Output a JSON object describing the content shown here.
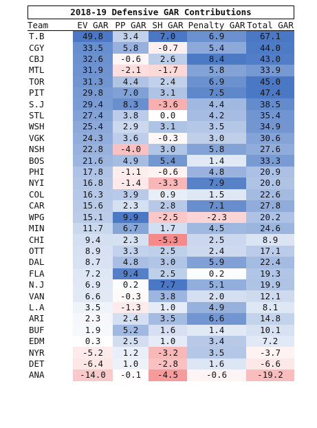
{
  "chart_data": {
    "type": "table",
    "title": "2018-19 Defensive GAR Contributions",
    "columns": [
      "Team",
      "EV GAR",
      "PP GAR",
      "SH GAR",
      "Penalty GAR",
      "Total GAR"
    ],
    "colors": {
      "positive": "#4a78c4",
      "negative": "#f06464",
      "neutral": "#ffffff"
    },
    "color_scale_abs_max": [
      40,
      10,
      7,
      8.5,
      45
    ],
    "rows": [
      [
        "T.B",
        "49.8",
        "3.4",
        "7.0",
        "6.9",
        "67.1"
      ],
      [
        "CGY",
        "33.5",
        "5.8",
        "-0.7",
        "5.4",
        "44.0"
      ],
      [
        "CBJ",
        "32.6",
        "-0.6",
        "2.6",
        "8.4",
        "43.0"
      ],
      [
        "MTL",
        "31.9",
        "-2.1",
        "-1.7",
        "5.8",
        "33.9"
      ],
      [
        "TOR",
        "31.3",
        "4.4",
        "2.4",
        "6.9",
        "45.0"
      ],
      [
        "PIT",
        "29.8",
        "7.0",
        "3.1",
        "7.5",
        "47.4"
      ],
      [
        "S.J",
        "29.4",
        "8.3",
        "-3.6",
        "4.4",
        "38.5"
      ],
      [
        "STL",
        "27.4",
        "3.8",
        "0.0",
        "4.2",
        "35.4"
      ],
      [
        "WSH",
        "25.4",
        "2.9",
        "3.1",
        "3.5",
        "34.9"
      ],
      [
        "VGK",
        "24.3",
        "3.6",
        "-0.3",
        "3.0",
        "30.6"
      ],
      [
        "NSH",
        "22.8",
        "-4.0",
        "3.0",
        "5.8",
        "27.6"
      ],
      [
        "BOS",
        "21.6",
        "4.9",
        "5.4",
        "1.4",
        "33.3"
      ],
      [
        "PHI",
        "17.8",
        "-1.1",
        "-0.6",
        "4.8",
        "20.9"
      ],
      [
        "NYI",
        "16.8",
        "-1.4",
        "-3.3",
        "7.9",
        "20.0"
      ],
      [
        "COL",
        "16.3",
        "3.9",
        "0.9",
        "1.5",
        "22.6"
      ],
      [
        "CAR",
        "15.6",
        "2.3",
        "2.8",
        "7.1",
        "27.8"
      ],
      [
        "WPG",
        "15.1",
        "9.9",
        "-2.5",
        "-2.3",
        "20.2"
      ],
      [
        "MIN",
        "11.7",
        "6.7",
        "1.7",
        "4.5",
        "24.6"
      ],
      [
        "CHI",
        "9.4",
        "2.3",
        "-5.3",
        "2.5",
        "8.9"
      ],
      [
        "OTT",
        "8.9",
        "3.3",
        "2.5",
        "2.4",
        "17.1"
      ],
      [
        "DAL",
        "8.7",
        "4.8",
        "3.0",
        "5.9",
        "22.4"
      ],
      [
        "FLA",
        "7.2",
        "9.4",
        "2.5",
        "0.2",
        "19.3"
      ],
      [
        "N.J",
        "6.9",
        "0.2",
        "7.7",
        "5.1",
        "19.9"
      ],
      [
        "VAN",
        "6.6",
        "-0.3",
        "3.8",
        "2.0",
        "12.1"
      ],
      [
        "L.A",
        "3.5",
        "-1.3",
        "1.0",
        "4.9",
        "8.1"
      ],
      [
        "ARI",
        "2.3",
        "2.4",
        "3.5",
        "6.6",
        "14.8"
      ],
      [
        "BUF",
        "1.9",
        "5.2",
        "1.6",
        "1.4",
        "10.1"
      ],
      [
        "EDM",
        "0.3",
        "2.5",
        "1.0",
        "3.4",
        "7.2"
      ],
      [
        "NYR",
        "-5.2",
        "1.2",
        "-3.2",
        "3.5",
        "-3.7"
      ],
      [
        "DET",
        "-6.4",
        "1.0",
        "-2.8",
        "1.6",
        "-6.6"
      ],
      [
        "ANA",
        "-14.0",
        "-0.1",
        "-4.5",
        "-0.6",
        "-19.2"
      ]
    ]
  }
}
